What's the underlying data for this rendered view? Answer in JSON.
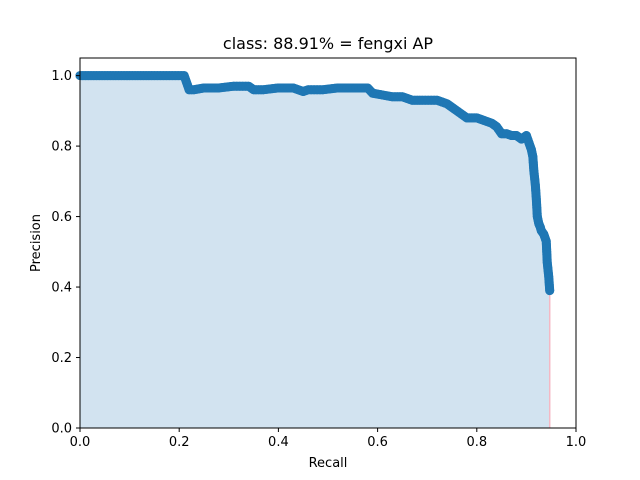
{
  "chart_data": {
    "type": "area",
    "title": "class: 88.91% = fengxi AP",
    "xlabel": "Recall",
    "ylabel": "Precision",
    "xlim": [
      0.0,
      1.0
    ],
    "ylim": [
      0.0,
      1.05
    ],
    "xticks": [
      "0.0",
      "0.2",
      "0.4",
      "0.6",
      "0.8",
      "1.0"
    ],
    "yticks": [
      "0.0",
      "0.2",
      "0.4",
      "0.6",
      "0.8",
      "1.0"
    ],
    "grid": false,
    "colors": {
      "line": "#1f77b4",
      "fill": "#d2e3f0",
      "edge": "#f4b8c4"
    },
    "series": [
      {
        "x": [
          0.0,
          0.05,
          0.1,
          0.15,
          0.21,
          0.215,
          0.22,
          0.23,
          0.25,
          0.28,
          0.31,
          0.34,
          0.35,
          0.37,
          0.4,
          0.43,
          0.45,
          0.46,
          0.49,
          0.52,
          0.55,
          0.58,
          0.59,
          0.61,
          0.63,
          0.65,
          0.66,
          0.67,
          0.69,
          0.72,
          0.73,
          0.74,
          0.75,
          0.76,
          0.77,
          0.78,
          0.8,
          0.81,
          0.82,
          0.83,
          0.84,
          0.85,
          0.86,
          0.87,
          0.88,
          0.89,
          0.9,
          0.905,
          0.91,
          0.913,
          0.915,
          0.918,
          0.92,
          0.922,
          0.925,
          0.928,
          0.93,
          0.935,
          0.94,
          0.942,
          0.945,
          0.947
        ],
        "y": [
          1.0,
          1.0,
          1.0,
          1.0,
          1.0,
          0.98,
          0.96,
          0.96,
          0.965,
          0.965,
          0.97,
          0.97,
          0.96,
          0.96,
          0.965,
          0.965,
          0.955,
          0.96,
          0.96,
          0.965,
          0.965,
          0.965,
          0.95,
          0.945,
          0.94,
          0.94,
          0.935,
          0.93,
          0.93,
          0.93,
          0.925,
          0.92,
          0.91,
          0.9,
          0.89,
          0.88,
          0.88,
          0.875,
          0.87,
          0.865,
          0.855,
          0.835,
          0.835,
          0.83,
          0.83,
          0.82,
          0.83,
          0.81,
          0.79,
          0.77,
          0.73,
          0.69,
          0.65,
          0.6,
          0.58,
          0.57,
          0.56,
          0.55,
          0.53,
          0.47,
          0.43,
          0.39
        ]
      }
    ]
  }
}
